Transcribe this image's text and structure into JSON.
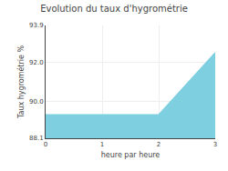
{
  "chart_data": {
    "type": "area",
    "title": "Evolution du taux d'hygrométrie",
    "x_label": "heure par heure",
    "y_label": "Taux hygrométrie %",
    "x": [
      0,
      1,
      2,
      3
    ],
    "values": [
      89.3,
      89.3,
      89.3,
      92.5
    ],
    "color": "#7ecfe0",
    "xlim": [
      0,
      3
    ],
    "xticks": [
      0,
      1,
      2,
      3
    ],
    "ylim": [
      88.1,
      93.9
    ],
    "yticks": [
      88.1,
      {
        "value": 90.0,
        "label": "90.0"
      },
      {
        "value": 92.0,
        "label": "92.0"
      },
      93.9
    ],
    "grid": true
  }
}
